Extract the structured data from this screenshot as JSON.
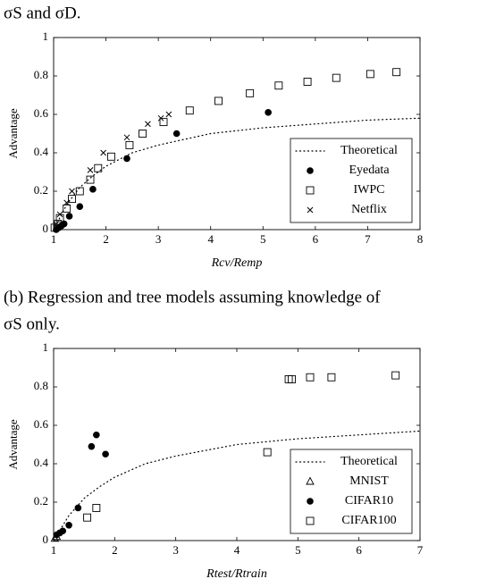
{
  "captions": [
    "σS and σD.",
    "(b) Regression and tree models assuming knowledge of",
    "σS only."
  ],
  "chart_data": [
    {
      "type": "scatter",
      "xlabel": "Rcv/Remp",
      "ylabel": "Advantage",
      "xlim": [
        1,
        8
      ],
      "xticks": [
        1,
        2,
        3,
        4,
        5,
        6,
        7,
        8
      ],
      "ylim": [
        0,
        1
      ],
      "yticks": [
        0,
        0.2,
        0.4,
        0.6,
        0.8,
        1
      ],
      "legend": "lower right",
      "series": [
        {
          "name": "Theoretical",
          "marker": "dotted",
          "color": "#000000",
          "x": [
            1,
            1.25,
            1.5,
            1.75,
            2,
            2.5,
            3,
            3.5,
            4,
            5,
            6,
            7,
            8
          ],
          "values": [
            0,
            0.13,
            0.22,
            0.28,
            0.33,
            0.4,
            0.44,
            0.47,
            0.5,
            0.53,
            0.55,
            0.57,
            0.58
          ]
        },
        {
          "name": "Eyedata",
          "marker": "circle",
          "color": "#000000",
          "x": [
            1.05,
            1.1,
            1.15,
            1.2,
            1.3,
            1.5,
            1.75,
            2.4,
            3.35,
            5.1
          ],
          "values": [
            0,
            0.01,
            0.02,
            0.03,
            0.07,
            0.12,
            0.21,
            0.37,
            0.5,
            0.61
          ]
        },
        {
          "name": "IWPC",
          "marker": "square",
          "color": "#000000",
          "x": [
            1.02,
            1.08,
            1.12,
            1.25,
            1.35,
            1.5,
            1.7,
            1.85,
            2.1,
            2.45,
            2.7,
            3.1,
            3.6,
            4.15,
            4.75,
            5.3,
            5.85,
            6.4,
            7.05,
            7.55
          ],
          "values": [
            0.01,
            0.03,
            0.06,
            0.11,
            0.16,
            0.2,
            0.26,
            0.32,
            0.38,
            0.44,
            0.5,
            0.56,
            0.62,
            0.67,
            0.71,
            0.75,
            0.77,
            0.79,
            0.81,
            0.82
          ]
        },
        {
          "name": "Netflix",
          "marker": "cross",
          "color": "#000000",
          "x": [
            1.05,
            1.12,
            1.25,
            1.35,
            1.7,
            1.95,
            2.4,
            2.8,
            3.05,
            3.2
          ],
          "values": [
            0.03,
            0.08,
            0.14,
            0.2,
            0.31,
            0.4,
            0.48,
            0.55,
            0.58,
            0.6
          ]
        }
      ]
    },
    {
      "type": "scatter",
      "xlabel": "Rtest/Rtrain",
      "ylabel": "Advantage",
      "xlim": [
        1,
        7
      ],
      "xticks": [
        1,
        2,
        3,
        4,
        5,
        6,
        7
      ],
      "ylim": [
        0,
        1
      ],
      "yticks": [
        0,
        0.2,
        0.4,
        0.6,
        0.8,
        1
      ],
      "legend": "lower right",
      "series": [
        {
          "name": "Theoretical",
          "marker": "dotted",
          "color": "#000000",
          "x": [
            1,
            1.25,
            1.5,
            1.75,
            2,
            2.5,
            3,
            3.5,
            4,
            5,
            6,
            7
          ],
          "values": [
            0,
            0.13,
            0.22,
            0.28,
            0.33,
            0.4,
            0.44,
            0.47,
            0.5,
            0.53,
            0.55,
            0.57
          ]
        },
        {
          "name": "MNIST",
          "marker": "triangle",
          "color": "#000000",
          "x": [
            1.02,
            1.05
          ],
          "values": [
            0.01,
            0.02
          ]
        },
        {
          "name": "CIFAR10",
          "marker": "circle",
          "color": "#000000",
          "x": [
            1.05,
            1.1,
            1.15,
            1.25,
            1.4,
            1.62,
            1.7,
            1.85
          ],
          "values": [
            0.03,
            0.04,
            0.05,
            0.08,
            0.17,
            0.49,
            0.55,
            0.45
          ]
        },
        {
          "name": "CIFAR100",
          "marker": "square",
          "color": "#000000",
          "x": [
            1.55,
            1.7,
            4.5,
            4.85,
            4.9,
            5.2,
            5.55,
            6.6
          ],
          "values": [
            0.12,
            0.17,
            0.46,
            0.84,
            0.84,
            0.85,
            0.85,
            0.86
          ]
        }
      ]
    }
  ]
}
